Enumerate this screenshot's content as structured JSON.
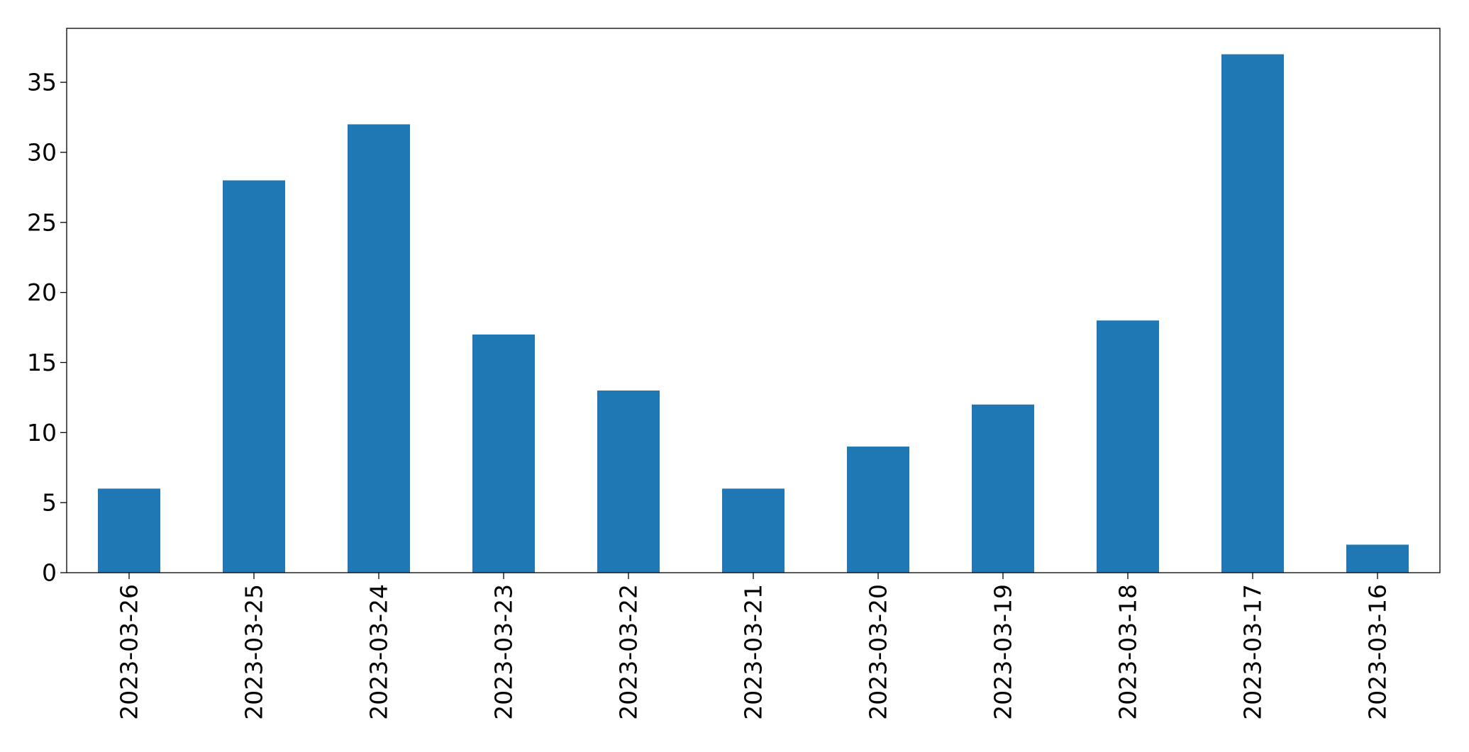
{
  "chart_data": {
    "type": "bar",
    "categories": [
      "2023-03-26",
      "2023-03-25",
      "2023-03-24",
      "2023-03-23",
      "2023-03-22",
      "2023-03-21",
      "2023-03-20",
      "2023-03-19",
      "2023-03-18",
      "2023-03-17",
      "2023-03-16"
    ],
    "values": [
      6,
      28,
      32,
      17,
      13,
      6,
      9,
      12,
      18,
      37,
      2
    ],
    "color": "#1f77b4",
    "ylim": [
      0,
      38.85
    ],
    "yticks": [
      0,
      5,
      10,
      15,
      20,
      25,
      30,
      35
    ],
    "grid": false
  }
}
